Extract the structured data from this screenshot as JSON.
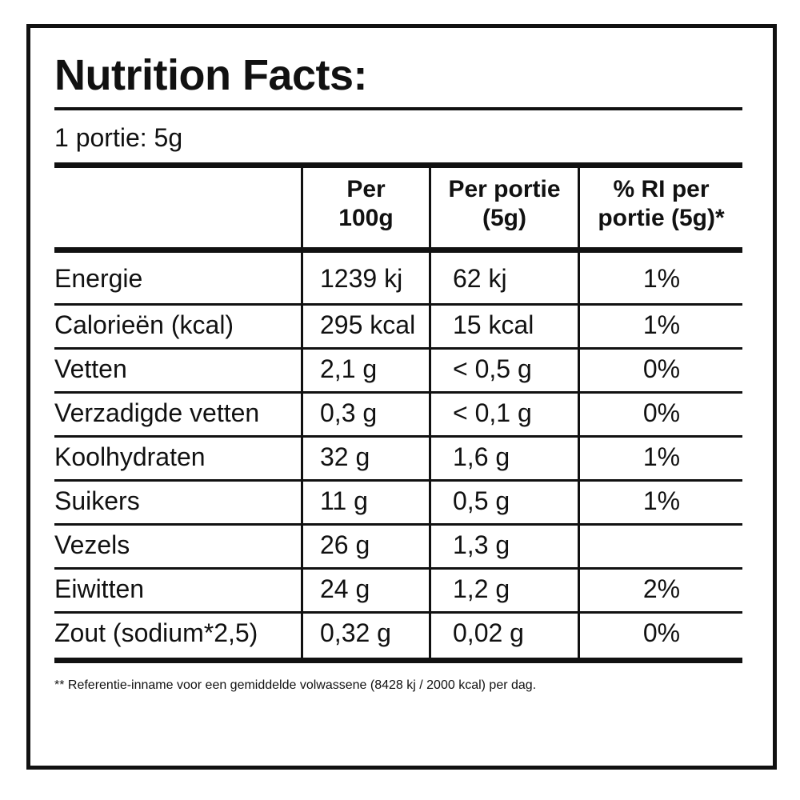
{
  "title": "Nutrition Facts:",
  "serving": "1 portie: 5g",
  "headers": {
    "per100g_line1": "Per",
    "per100g_line2": "100g",
    "perportie_line1": "Per portie",
    "perportie_line2": "(5g)",
    "ri_line1": "% RI per",
    "ri_line2": "portie (5g)*"
  },
  "rows": [
    {
      "name": "Energie",
      "per100g": "1239 kj",
      "perportie": "62 kj",
      "ri": "1%"
    },
    {
      "name": "Calorieën (kcal)",
      "per100g": "295 kcal",
      "perportie": "15 kcal",
      "ri": "1%"
    },
    {
      "name": "Vetten",
      "per100g": "2,1 g",
      "perportie": "< 0,5 g",
      "ri": "0%"
    },
    {
      "name": "Verzadigde vetten",
      "per100g": "0,3 g",
      "perportie": "< 0,1 g",
      "ri": "0%"
    },
    {
      "name": "Koolhydraten",
      "per100g": "32 g",
      "perportie": "1,6 g",
      "ri": "1%"
    },
    {
      "name": "Suikers",
      "per100g": "11 g",
      "perportie": "0,5 g",
      "ri": "1%"
    },
    {
      "name": "Vezels",
      "per100g": "26 g",
      "perportie": "1,3 g",
      "ri": ""
    },
    {
      "name": "Eiwitten",
      "per100g": "24 g",
      "perportie": "1,2 g",
      "ri": "2%"
    },
    {
      "name": "Zout (sodium*2,5)",
      "per100g": "0,32 g",
      "perportie": "0,02 g",
      "ri": "0%"
    }
  ],
  "footnote": "** Referentie-inname voor een gemiddelde volwassene (8428 kj / 2000 kcal) per dag."
}
